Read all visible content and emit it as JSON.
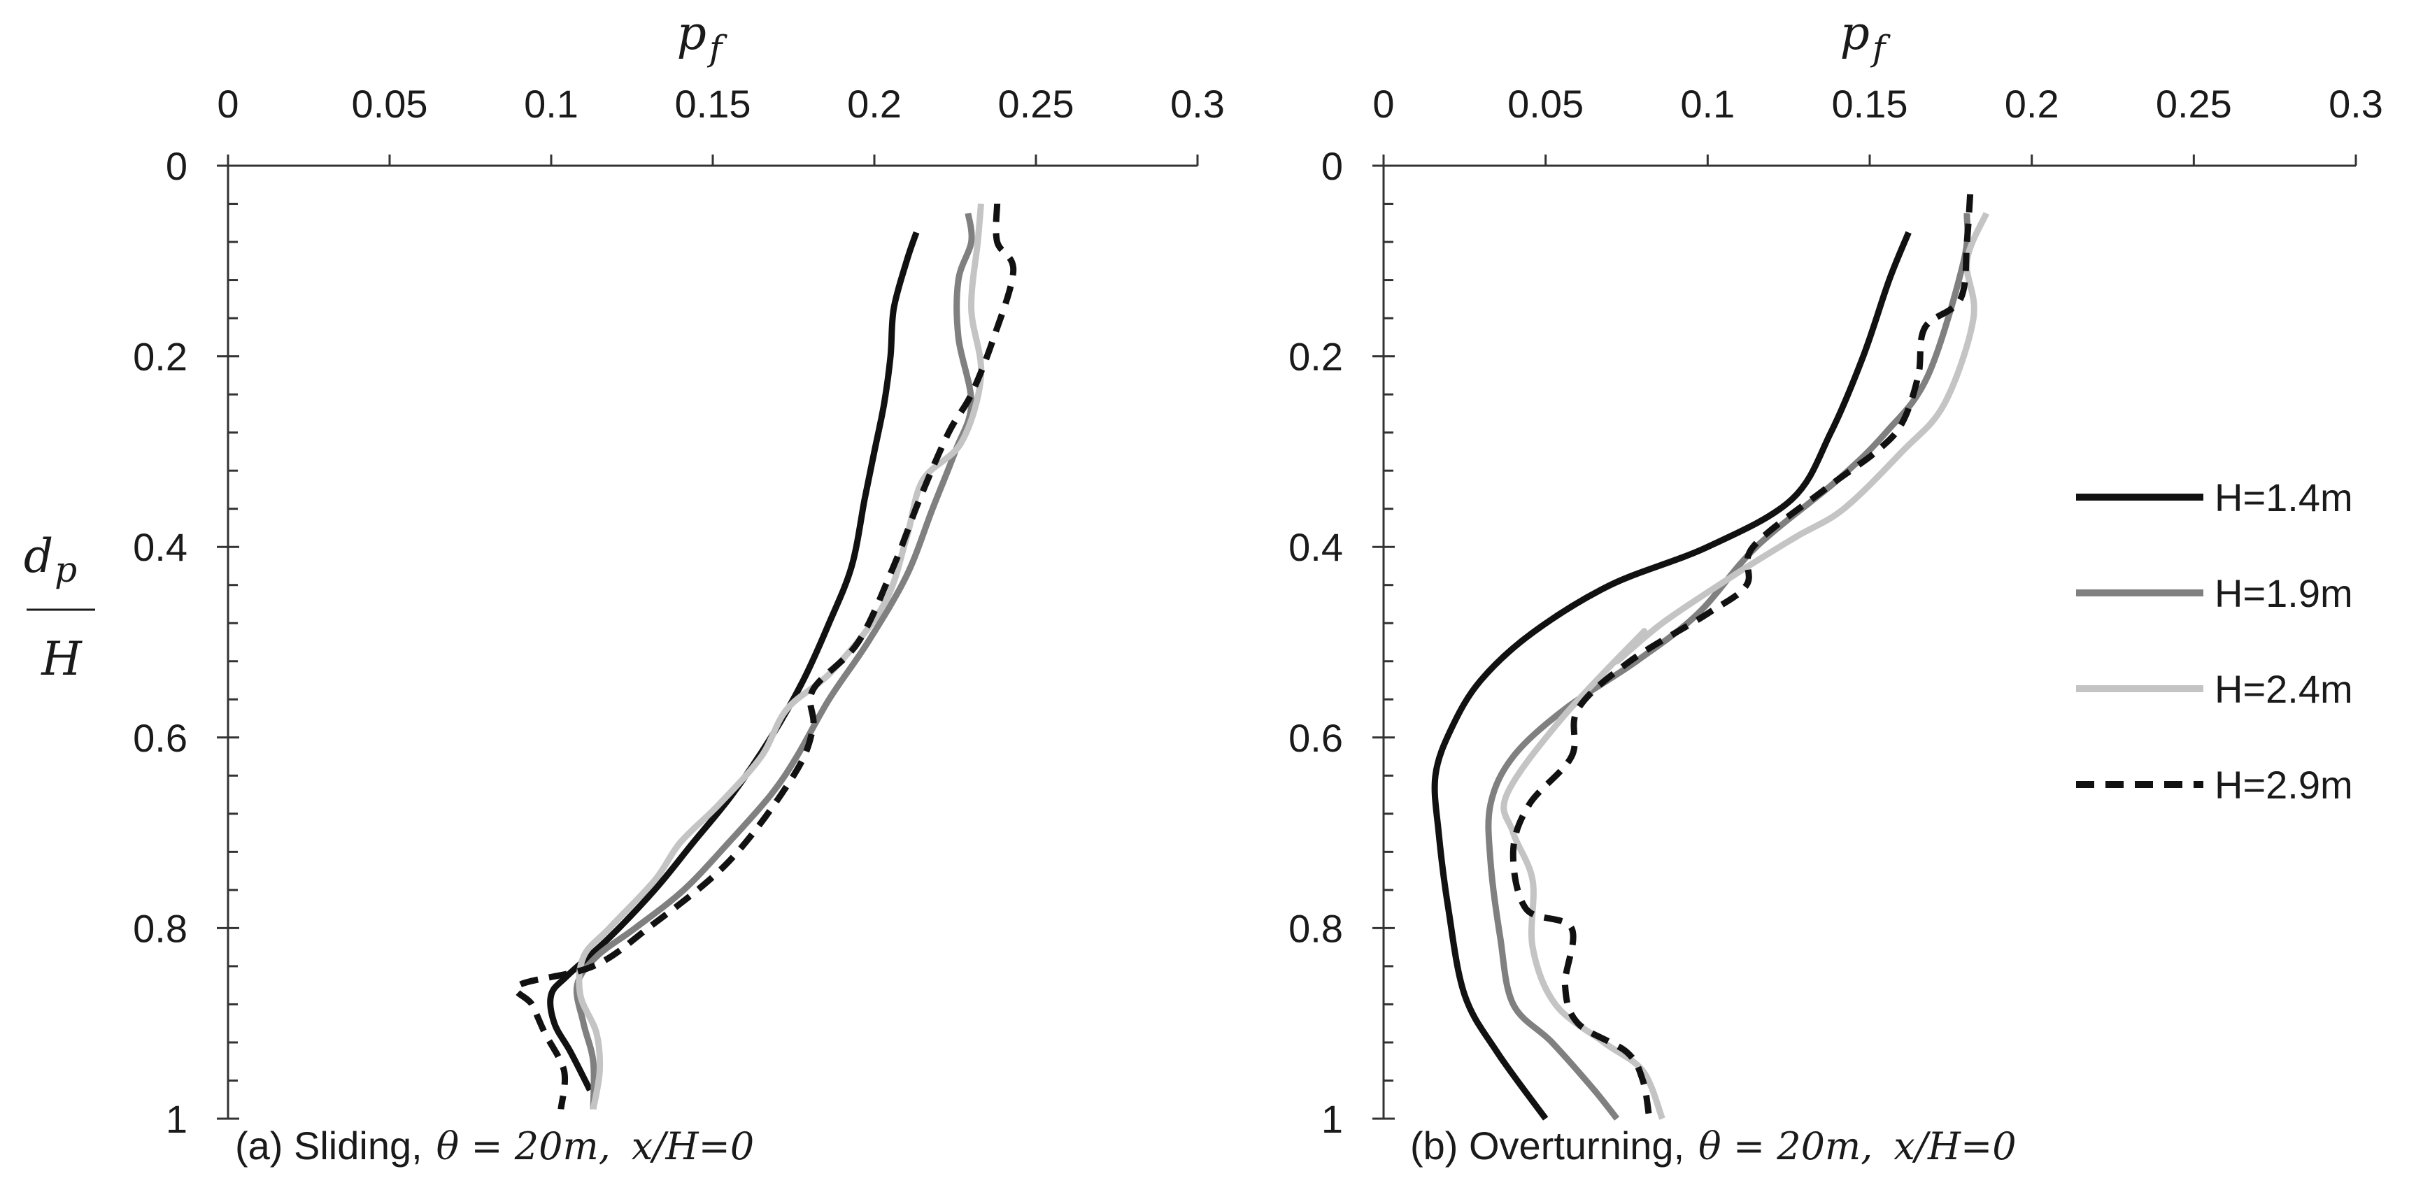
{
  "ylabel": {
    "numerator": "d",
    "numerator_sub": "p",
    "denominator": "H"
  },
  "legend": [
    {
      "label": "H=1.4m",
      "color": "#111111",
      "dash": ""
    },
    {
      "label": "H=1.9m",
      "color": "#808080",
      "dash": ""
    },
    {
      "label": "H=2.4m",
      "color": "#c4c4c4",
      "dash": ""
    },
    {
      "label": "H=2.9m",
      "color": "#111111",
      "dash": "dashed"
    }
  ],
  "chart_data": [
    {
      "type": "line",
      "title": "(a) Sliding",
      "caption": {
        "prefix": "(a) Sliding,",
        "theta": "θ = 20m,",
        "ratio": "x/H=0"
      },
      "xlabel": "p",
      "xlabel_sub": "f",
      "xlim": [
        0,
        0.3
      ],
      "ylim": [
        0,
        1
      ],
      "xticks": [
        "0",
        "0.05",
        "0.1",
        "0.15",
        "0.2",
        "0.25",
        "0.3"
      ],
      "yticks": [
        "0",
        "0.2",
        "0.4",
        "0.6",
        "0.8",
        "1"
      ],
      "series": [
        {
          "name": "H=1.4m",
          "x": [
            0.213,
            0.21,
            0.206,
            0.205,
            0.203,
            0.2,
            0.197,
            0.193,
            0.186,
            0.178,
            0.168,
            0.156,
            0.144,
            0.132,
            0.118,
            0.105,
            0.1,
            0.101,
            0.106,
            0.112
          ],
          "y": [
            0.07,
            0.1,
            0.15,
            0.2,
            0.25,
            0.3,
            0.35,
            0.42,
            0.48,
            0.54,
            0.6,
            0.66,
            0.71,
            0.76,
            0.81,
            0.85,
            0.87,
            0.9,
            0.93,
            0.97
          ]
        },
        {
          "name": "H=1.9m",
          "x": [
            0.229,
            0.23,
            0.226,
            0.226,
            0.23,
            0.225,
            0.218,
            0.21,
            0.198,
            0.186,
            0.176,
            0.168,
            0.155,
            0.141,
            0.126,
            0.114,
            0.108,
            0.11,
            0.113,
            0.113
          ],
          "y": [
            0.05,
            0.08,
            0.12,
            0.18,
            0.25,
            0.3,
            0.36,
            0.43,
            0.5,
            0.56,
            0.62,
            0.66,
            0.71,
            0.76,
            0.8,
            0.83,
            0.86,
            0.9,
            0.94,
            0.99
          ]
        },
        {
          "name": "H=2.4m",
          "x": [
            0.233,
            0.232,
            0.23,
            0.233,
            0.227,
            0.215,
            0.21,
            0.203,
            0.187,
            0.173,
            0.165,
            0.152,
            0.14,
            0.132,
            0.118,
            0.11,
            0.109,
            0.114,
            0.115,
            0.113
          ],
          "y": [
            0.04,
            0.08,
            0.15,
            0.22,
            0.29,
            0.33,
            0.39,
            0.46,
            0.53,
            0.57,
            0.62,
            0.67,
            0.71,
            0.75,
            0.8,
            0.83,
            0.87,
            0.91,
            0.95,
            0.99
          ]
        },
        {
          "name": "H=2.9m",
          "x": [
            0.238,
            0.238,
            0.243,
            0.237,
            0.23,
            0.223,
            0.214,
            0.206,
            0.195,
            0.181,
            0.181,
            0.175,
            0.155,
            0.13,
            0.113,
            0.09,
            0.094,
            0.098,
            0.104,
            0.103
          ],
          "y": [
            0.04,
            0.08,
            0.11,
            0.18,
            0.24,
            0.28,
            0.35,
            0.42,
            0.5,
            0.55,
            0.59,
            0.64,
            0.73,
            0.8,
            0.84,
            0.86,
            0.88,
            0.91,
            0.95,
            0.99
          ]
        }
      ]
    },
    {
      "type": "line",
      "title": "(b) Overturning",
      "caption": {
        "prefix": "(b) Overturning,",
        "theta": "θ = 20m,",
        "ratio": "x/H=0"
      },
      "xlabel": "p",
      "xlabel_sub": "f",
      "xlim": [
        0,
        0.3
      ],
      "ylim": [
        0,
        1
      ],
      "xticks": [
        "0",
        "0.05",
        "0.1",
        "0.15",
        "0.2",
        "0.25",
        "0.3"
      ],
      "yticks": [
        "0",
        "0.2",
        "0.4",
        "0.6",
        "0.8",
        "1"
      ],
      "series": [
        {
          "name": "H=1.4m",
          "x": [
            0.162,
            0.156,
            0.148,
            0.138,
            0.126,
            0.1,
            0.07,
            0.046,
            0.03,
            0.021,
            0.016,
            0.017,
            0.02,
            0.025,
            0.035,
            0.05
          ],
          "y": [
            0.07,
            0.12,
            0.2,
            0.28,
            0.35,
            0.4,
            0.44,
            0.49,
            0.54,
            0.59,
            0.64,
            0.7,
            0.78,
            0.87,
            0.93,
            1.0
          ]
        },
        {
          "name": "H=1.9m",
          "x": [
            0.18,
            0.179,
            0.168,
            0.155,
            0.14,
            0.115,
            0.097,
            0.078,
            0.056,
            0.04,
            0.033,
            0.033,
            0.036,
            0.04,
            0.052,
            0.065,
            0.072
          ],
          "y": [
            0.05,
            0.1,
            0.22,
            0.28,
            0.33,
            0.4,
            0.47,
            0.52,
            0.57,
            0.62,
            0.67,
            0.73,
            0.81,
            0.88,
            0.92,
            0.97,
            1.0
          ]
        },
        {
          "name": "H=2.4m",
          "x": [
            0.186,
            0.18,
            0.182,
            0.173,
            0.16,
            0.142,
            0.127,
            0.108,
            0.086,
            0.072,
            0.08,
            0.055,
            0.038,
            0.04,
            0.046,
            0.046,
            0.053,
            0.068,
            0.08,
            0.086
          ],
          "y": [
            0.05,
            0.1,
            0.16,
            0.25,
            0.3,
            0.36,
            0.39,
            0.43,
            0.48,
            0.52,
            0.49,
            0.58,
            0.66,
            0.7,
            0.75,
            0.82,
            0.88,
            0.92,
            0.95,
            1.0
          ]
        },
        {
          "name": "H=2.9m",
          "x": [
            0.181,
            0.18,
            0.178,
            0.167,
            0.165,
            0.16,
            0.152,
            0.136,
            0.114,
            0.112,
            0.1,
            0.076,
            0.06,
            0.058,
            0.045,
            0.04,
            0.044,
            0.058,
            0.056,
            0.06,
            0.075,
            0.08,
            0.082
          ],
          "y": [
            0.03,
            0.08,
            0.14,
            0.17,
            0.22,
            0.27,
            0.3,
            0.34,
            0.4,
            0.44,
            0.47,
            0.52,
            0.57,
            0.62,
            0.67,
            0.72,
            0.78,
            0.8,
            0.86,
            0.9,
            0.93,
            0.96,
            1.0
          ]
        }
      ]
    }
  ]
}
